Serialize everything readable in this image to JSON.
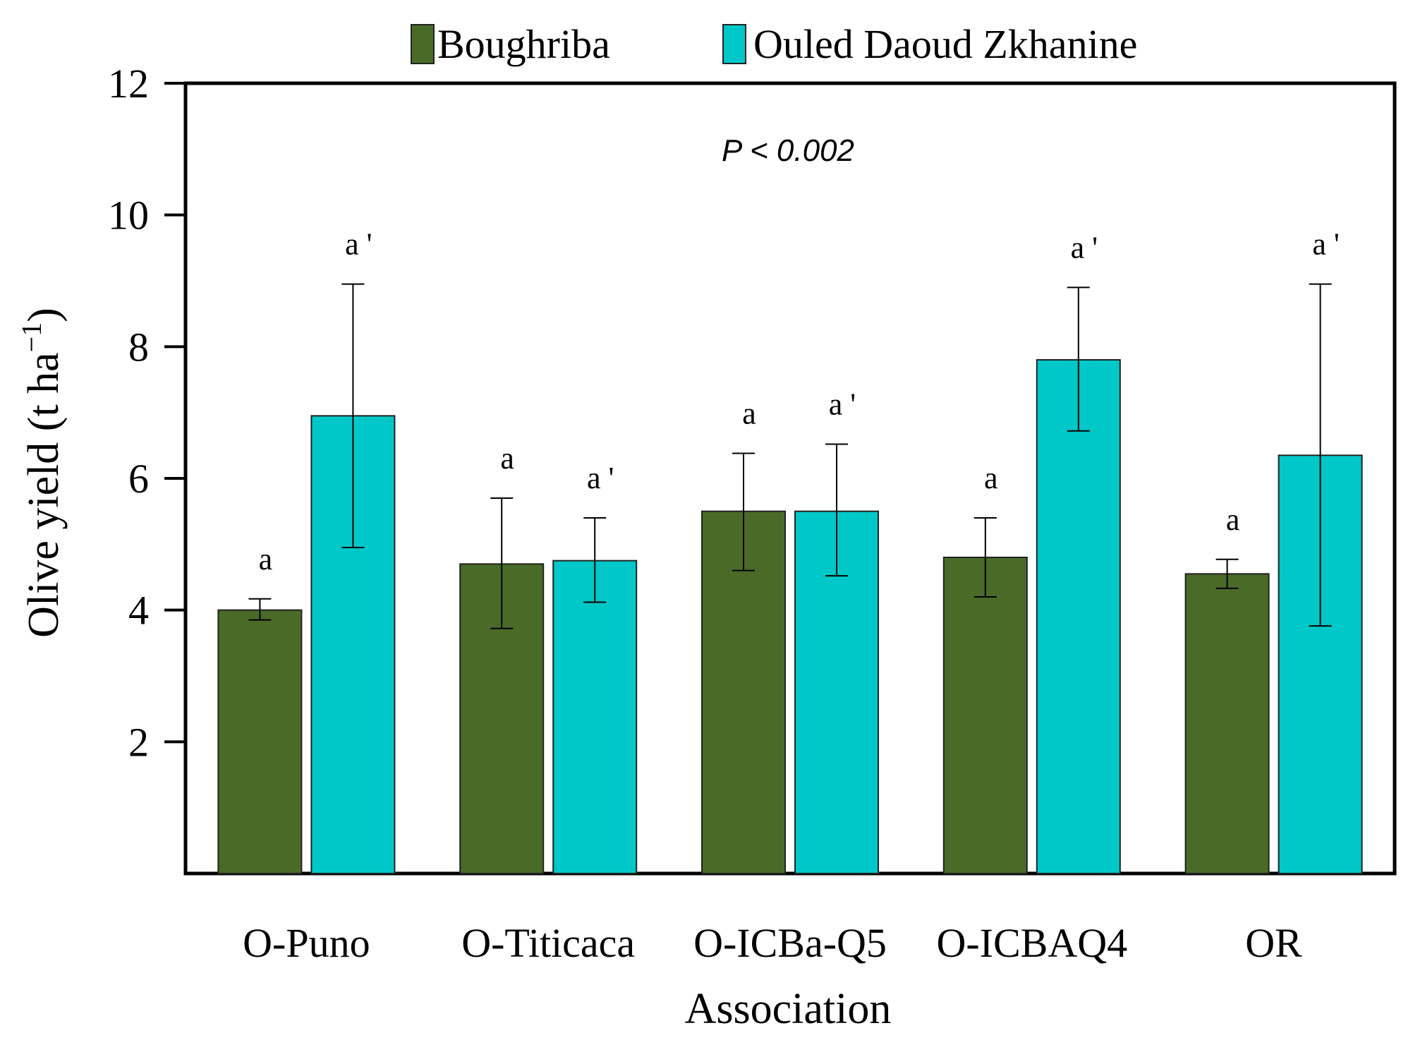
{
  "chart_data": {
    "type": "bar",
    "xlabel": "Association",
    "ylabel": "Olive yield (t ha⁻¹)",
    "ylabel_main": "Olive yield (t ha",
    "ylabel_sup": "−1",
    "ylabel_close": ")",
    "annotation": "P < 0.002",
    "ylim": [
      0,
      12
    ],
    "yticks": [
      2,
      4,
      6,
      8,
      10,
      12
    ],
    "categories": [
      "O-Puno",
      "O-Titicaca",
      "O-ICBa-Q5",
      "O-ICBAQ4",
      "OR"
    ],
    "series": [
      {
        "name": "Boughriba",
        "color": "#4a6b27",
        "values": [
          4.0,
          4.7,
          5.5,
          4.8,
          4.55
        ],
        "err_low": [
          3.85,
          3.72,
          4.6,
          4.2,
          4.33
        ],
        "err_high": [
          4.17,
          5.7,
          6.38,
          5.4,
          4.77
        ],
        "labels": [
          "a",
          "a",
          "a",
          "a",
          "a"
        ]
      },
      {
        "name": "Ouled Daoud Zkhanine",
        "color": "#00c8c8",
        "values": [
          6.95,
          4.75,
          5.5,
          7.8,
          6.35
        ],
        "err_low": [
          4.95,
          4.12,
          4.52,
          6.72,
          3.76
        ],
        "err_high": [
          8.95,
          5.4,
          6.52,
          8.9,
          8.95
        ],
        "labels": [
          "a '",
          "a '",
          "a '",
          "a '",
          "a '"
        ]
      }
    ]
  }
}
